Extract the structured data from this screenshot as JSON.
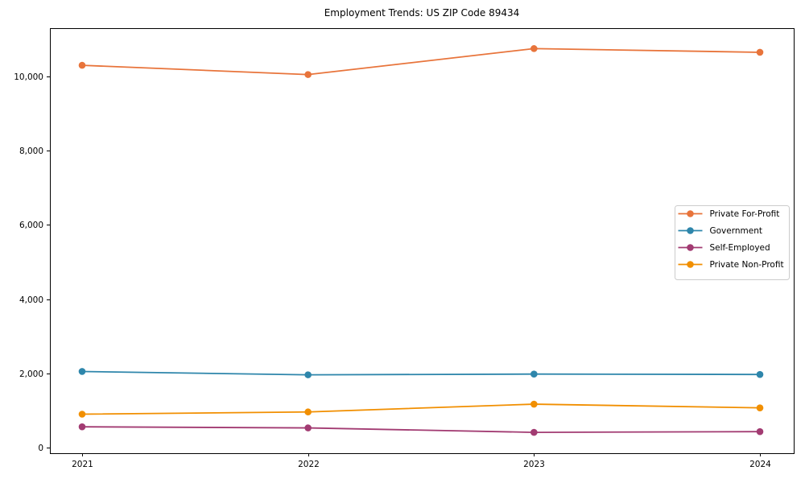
{
  "title": "Employment Trends: US ZIP Code 89434",
  "chart_data": {
    "type": "line",
    "title": "Employment Trends: US ZIP Code 89434",
    "x": [
      2021,
      2022,
      2023,
      2024
    ],
    "x_tick_labels": [
      "2021",
      "2022",
      "2023",
      "2024"
    ],
    "y_ticks": [
      0,
      2000,
      4000,
      6000,
      8000,
      10000
    ],
    "y_tick_labels": [
      "0",
      "2,000",
      "4,000",
      "6,000",
      "8,000",
      "10,000"
    ],
    "ylim": [
      -152,
      11300
    ],
    "grid": false,
    "legend_position": "center-right",
    "series": [
      {
        "name": "Private For-Profit",
        "color": "#E8743B",
        "values": [
          10300,
          10050,
          10750,
          10650
        ]
      },
      {
        "name": "Government",
        "color": "#2E86AB",
        "values": [
          2050,
          1960,
          1980,
          1970
        ]
      },
      {
        "name": "Self-Employed",
        "color": "#A23B72",
        "values": [
          560,
          530,
          410,
          430
        ]
      },
      {
        "name": "Private Non-Profit",
        "color": "#F18F01",
        "values": [
          900,
          960,
          1170,
          1070
        ]
      }
    ],
    "legend_border_color": "#cccccc",
    "axis_color": "#000000"
  }
}
